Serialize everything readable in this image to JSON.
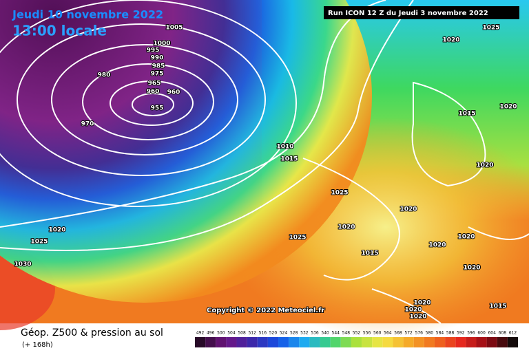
{
  "header": {
    "date": "Jeudi 10 novembre 2022",
    "time": "13:00 locale",
    "run": "Run ICON 12 Z du Jeudi 3 novembre 2022"
  },
  "copyright": "Copyright © 2022 Meteociel.fr",
  "legend": {
    "title": "Géop. Z500 & pression au sol",
    "subtitle": "(+ 168h)",
    "scale": [
      492,
      496,
      500,
      504,
      508,
      512,
      516,
      520,
      524,
      528,
      532,
      536,
      540,
      544,
      548,
      552,
      556,
      560,
      564,
      568,
      572,
      576,
      580,
      584,
      588,
      592,
      596,
      600,
      604,
      608,
      612
    ]
  },
  "isobars": [
    1005,
    1025,
    1020,
    1000,
    995,
    990,
    985,
    980,
    975,
    965,
    960,
    960,
    955,
    970,
    1015,
    1020,
    1010,
    1015,
    1020,
    1025,
    1020,
    1020,
    1020,
    1025,
    1025,
    1015,
    1020,
    1020,
    1020,
    1030,
    1020,
    1020,
    1020,
    1015
  ]
}
